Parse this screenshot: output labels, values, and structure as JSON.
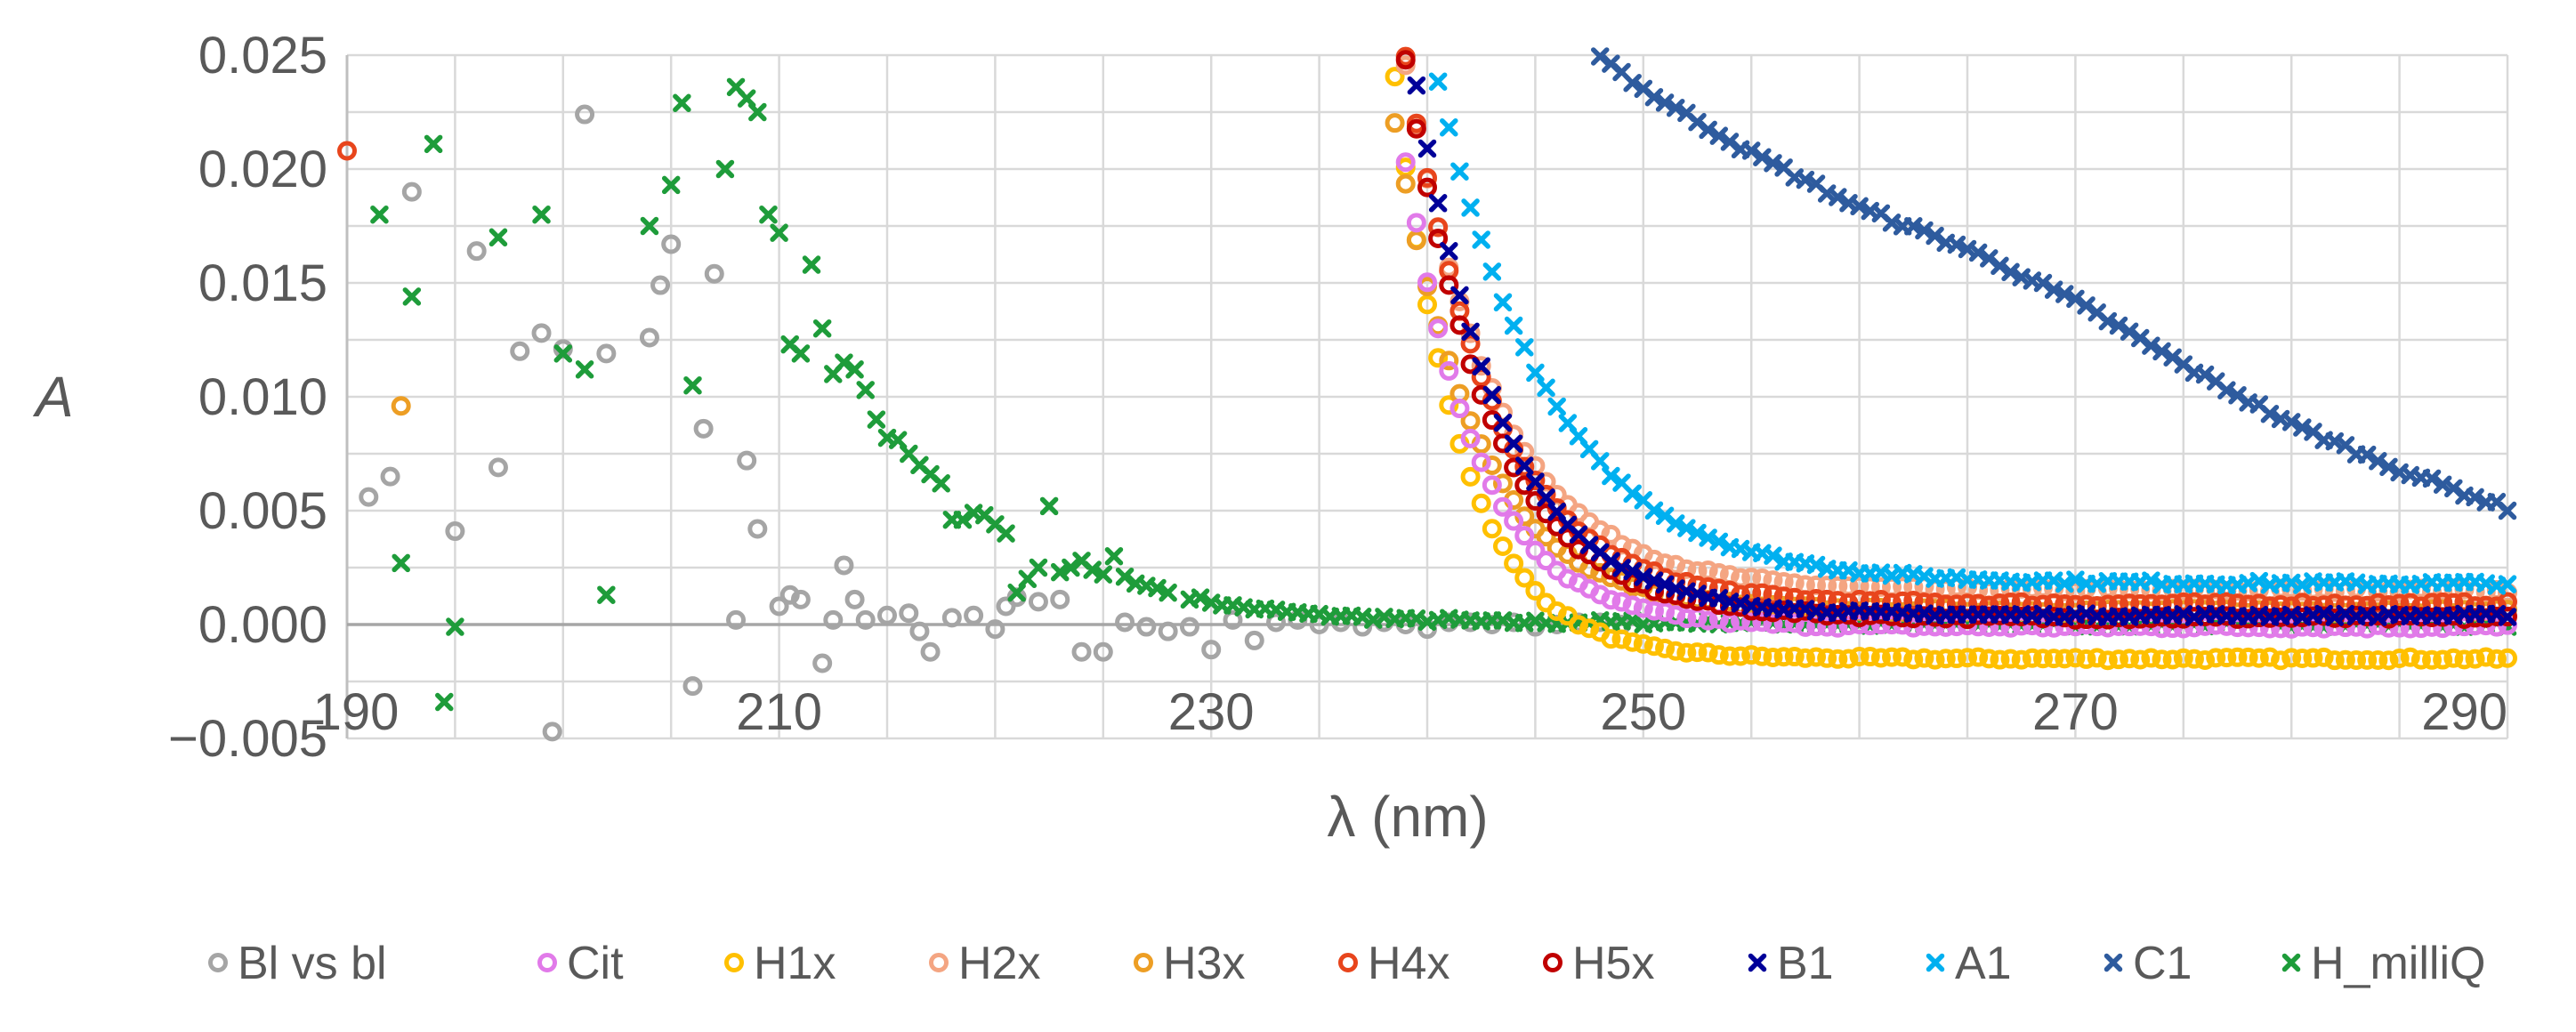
{
  "chart_data": {
    "type": "scatter",
    "xlabel": "λ (nm)",
    "ylabel": "A",
    "xlim": [
      190,
      290
    ],
    "ylim": [
      -0.005,
      0.025
    ],
    "xticks": [
      "190",
      "210",
      "230",
      "250",
      "270",
      "290"
    ],
    "yticks": [
      "−0.005",
      "0.000",
      "0.005",
      "0.010",
      "0.015",
      "0.020",
      "0.025"
    ],
    "ytick_values": [
      -0.005,
      0,
      0.005,
      0.01,
      0.015,
      0.02,
      0.025
    ],
    "xgrid_step": 5,
    "grid": true,
    "legend_position": "bottom",
    "series": [
      {
        "name": "Bl vs bl",
        "color": "#a5a5a5",
        "marker": "circle",
        "points": [
          [
            191,
            0.0056
          ],
          [
            192,
            0.0065
          ],
          [
            193,
            0.019
          ],
          [
            195,
            0.0041
          ],
          [
            196,
            0.0164
          ],
          [
            197,
            0.0069
          ],
          [
            198,
            0.012
          ],
          [
            199,
            0.0128
          ],
          [
            199.5,
            -0.0047
          ],
          [
            200,
            0.0121
          ],
          [
            201,
            0.0224
          ],
          [
            202,
            0.0119
          ],
          [
            204,
            0.0126
          ],
          [
            204.5,
            0.0149
          ],
          [
            205,
            0.0167
          ],
          [
            206,
            -0.0027
          ],
          [
            206.5,
            0.0086
          ],
          [
            207,
            0.0154
          ],
          [
            208,
            0.0002
          ],
          [
            208.5,
            0.0072
          ],
          [
            209,
            0.0042
          ],
          [
            210,
            0.0008
          ],
          [
            210.5,
            0.0013
          ],
          [
            211,
            0.0011
          ],
          [
            212,
            -0.0017
          ],
          [
            212.5,
            0.0002
          ],
          [
            213,
            0.0026
          ],
          [
            213.5,
            0.0011
          ],
          [
            214,
            0.0002
          ],
          [
            215,
            0.0004
          ],
          [
            216,
            0.0005
          ],
          [
            216.5,
            -0.0003
          ],
          [
            217,
            -0.0012
          ],
          [
            218,
            0.0003
          ],
          [
            219,
            0.0004
          ],
          [
            220,
            -0.0002
          ],
          [
            220.5,
            0.0008
          ],
          [
            221,
            0.0012
          ],
          [
            222,
            0.001
          ],
          [
            223,
            0.0011
          ],
          [
            224,
            -0.0012
          ],
          [
            225,
            -0.0012
          ],
          [
            226,
            0.0001
          ],
          [
            227,
            -0.0001
          ],
          [
            228,
            -0.0003
          ],
          [
            229,
            -0.0001
          ],
          [
            230,
            -0.0011
          ],
          [
            231,
            0.0002
          ],
          [
            232,
            -0.0007
          ],
          [
            233,
            0.0001
          ],
          [
            234,
            0.0002
          ],
          [
            235,
            0
          ],
          [
            236,
            0.0001
          ],
          [
            237,
            -0.0001
          ],
          [
            238,
            0.0001
          ],
          [
            239,
            0
          ],
          [
            240,
            -0.0002
          ],
          [
            241,
            0.0001
          ],
          [
            242,
            0.0001
          ],
          [
            243,
            0
          ],
          [
            244,
            0.0001
          ],
          [
            245,
            -0.0001
          ],
          [
            246,
            0
          ],
          [
            247,
            0.0001
          ],
          [
            248,
            0.0001
          ],
          [
            249,
            0
          ]
        ]
      },
      {
        "name": "Cit",
        "color": "#e17ae9",
        "marker": "circle",
        "curve": {
          "start": 239,
          "end": 290,
          "a": 0.0205,
          "k": 0.3,
          "c": -0.0001,
          "noise": 0.0002
        }
      },
      {
        "name": "H1x",
        "color": "#ffc000",
        "marker": "circle",
        "curve": {
          "start": 238.5,
          "end": 290,
          "a": 0.0255,
          "k": 0.33,
          "c": -0.0015,
          "noise": 0.00015
        }
      },
      {
        "name": "H2x",
        "color": "#f4a582",
        "marker": "circle",
        "curve": {
          "start": 239,
          "end": 290,
          "a": 0.023,
          "k": 0.24,
          "c": 0.0015,
          "noise": 0.0002
        }
      },
      {
        "name": "H3x",
        "color": "#ed9e24",
        "marker": "circle",
        "curve": {
          "start": 238,
          "end": 290,
          "a": 0.0245,
          "k": 0.27,
          "c": 0.0006,
          "noise": 0.0002
        },
        "extra_points": [
          [
            192.5,
            0.0096
          ]
        ]
      },
      {
        "name": "H4x",
        "color": "#e8451c",
        "marker": "circle",
        "curve": {
          "start": 239,
          "end": 290,
          "a": 0.024,
          "k": 0.25,
          "c": 0.0009,
          "noise": 0.0002
        },
        "extra_points": [
          [
            190,
            0.0208
          ]
        ]
      },
      {
        "name": "H5x",
        "color": "#c00000",
        "marker": "circle",
        "curve": {
          "start": 239,
          "end": 290,
          "a": 0.0245,
          "k": 0.26,
          "c": 0.0003,
          "noise": 0.0002
        }
      },
      {
        "name": "B1",
        "color": "#000099",
        "marker": "x",
        "curve": {
          "start": 239.5,
          "end": 290,
          "a": 0.0232,
          "k": 0.25,
          "c": 0.0004,
          "noise": 0.00015
        }
      },
      {
        "name": "A1",
        "color": "#00b0f0",
        "marker": "x",
        "curve": {
          "start": 240.5,
          "end": 290,
          "a": 0.022,
          "k": 0.19,
          "c": 0.0018,
          "noise": 0.0002
        }
      },
      {
        "name": "C1",
        "color": "#2e5b9e",
        "marker": "x",
        "points": [
          [
            248,
            0.025
          ],
          [
            250,
            0.0235
          ],
          [
            255,
            0.0207
          ],
          [
            260,
            0.0183
          ],
          [
            265,
            0.0165
          ],
          [
            270,
            0.0142
          ],
          [
            275,
            0.0114
          ],
          [
            280,
            0.0088
          ],
          [
            285,
            0.0068
          ],
          [
            290,
            0.0051
          ]
        ]
      },
      {
        "name": "H_milliQ",
        "color": "#1e9c3a",
        "marker": "x",
        "points": [
          [
            191.5,
            0.018
          ],
          [
            192.5,
            0.0027
          ],
          [
            193,
            0.0144
          ],
          [
            194,
            0.0211
          ],
          [
            194.5,
            -0.0034
          ],
          [
            195,
            -0.0001
          ],
          [
            197,
            0.017
          ],
          [
            199,
            0.018
          ],
          [
            200,
            0.0119
          ],
          [
            201,
            0.0112
          ],
          [
            202,
            0.0013
          ],
          [
            204,
            0.0175
          ],
          [
            205,
            0.0193
          ],
          [
            205.5,
            0.0229
          ],
          [
            206,
            0.0105
          ],
          [
            207.5,
            0.02
          ],
          [
            208,
            0.0236
          ],
          [
            208.5,
            0.0231
          ],
          [
            209,
            0.0225
          ],
          [
            209.5,
            0.018
          ],
          [
            210,
            0.0172
          ],
          [
            210.5,
            0.0123
          ],
          [
            211,
            0.0119
          ],
          [
            211.5,
            0.0158
          ],
          [
            212,
            0.013
          ],
          [
            212.5,
            0.011
          ],
          [
            213,
            0.0115
          ],
          [
            213.5,
            0.0112
          ],
          [
            214,
            0.0103
          ],
          [
            214.5,
            0.009
          ],
          [
            215,
            0.0082
          ],
          [
            215.5,
            0.0081
          ],
          [
            216,
            0.0075
          ],
          [
            216.5,
            0.007
          ],
          [
            217,
            0.0066
          ],
          [
            217.5,
            0.0062
          ],
          [
            218,
            0.0046
          ],
          [
            218.5,
            0.0046
          ],
          [
            219,
            0.0049
          ],
          [
            219.5,
            0.0048
          ],
          [
            220,
            0.0044
          ],
          [
            220.5,
            0.004
          ],
          [
            221,
            0.0014
          ],
          [
            221.5,
            0.002
          ],
          [
            222,
            0.0025
          ],
          [
            222.5,
            0.0052
          ],
          [
            223,
            0.0023
          ],
          [
            223.5,
            0.0025
          ],
          [
            224,
            0.0028
          ],
          [
            224.5,
            0.0024
          ],
          [
            225,
            0.0022
          ],
          [
            225.5,
            0.003
          ],
          [
            226,
            0.0021
          ],
          [
            226.5,
            0.0018
          ],
          [
            227,
            0.0017
          ],
          [
            227.5,
            0.0016
          ],
          [
            228,
            0.0014
          ],
          [
            229,
            0.0012
          ],
          [
            230,
            0.001
          ],
          [
            231,
            0.0008
          ],
          [
            232,
            0.0007
          ],
          [
            233,
            0.0006
          ],
          [
            234,
            0.0005
          ],
          [
            235,
            0.0004
          ],
          [
            236,
            0.0004
          ],
          [
            237,
            0.0003
          ],
          [
            238,
            0.0003
          ],
          [
            239,
            0.0002
          ],
          [
            240,
            0.0002
          ],
          [
            241,
            0.0002
          ],
          [
            243,
            0.0001
          ],
          [
            245,
            0.0001
          ],
          [
            250,
            0.0001
          ],
          [
            255,
            0.0001
          ],
          [
            260,
            0
          ],
          [
            265,
            0
          ],
          [
            270,
            0
          ],
          [
            275,
            0
          ],
          [
            280,
            0
          ],
          [
            285,
            0
          ],
          [
            290,
            0
          ]
        ],
        "dense_from": 229,
        "dense_step": 0.5,
        "noise": 0.0002
      }
    ]
  }
}
